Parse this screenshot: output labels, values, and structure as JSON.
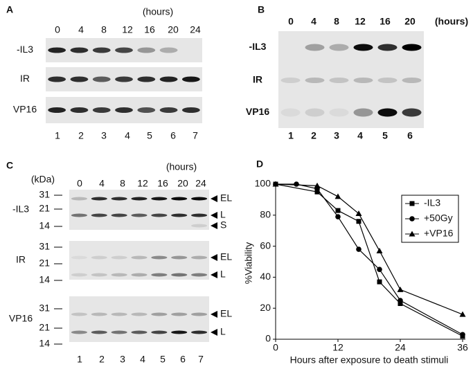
{
  "panels": {
    "a": {
      "label": "A",
      "unit": "(hours)",
      "times": [
        "0",
        "4",
        "8",
        "12",
        "16",
        "20",
        "24"
      ],
      "rows": [
        "-IL3",
        "IR",
        "VP16"
      ],
      "lanes": [
        "1",
        "2",
        "3",
        "4",
        "5",
        "6",
        "7"
      ]
    },
    "b": {
      "label": "B",
      "unit": "(hours)",
      "times": [
        "0",
        "4",
        "8",
        "12",
        "16",
        "20"
      ],
      "rows": [
        "-IL3",
        "IR",
        "VP16"
      ],
      "lanes": [
        "1",
        "2",
        "3",
        "4",
        "5",
        "6"
      ]
    },
    "c": {
      "label": "C",
      "kda": "(kDa)",
      "unit": "(hours)",
      "times": [
        "0",
        "4",
        "8",
        "12",
        "16",
        "20",
        "24"
      ],
      "lanes": [
        "1",
        "2",
        "3",
        "4",
        "5",
        "6",
        "7"
      ],
      "rows": [
        {
          "name": "-IL3",
          "markers": [
            "31",
            "21",
            "14"
          ],
          "bands": [
            "EL",
            "L",
            "S"
          ]
        },
        {
          "name": "IR",
          "markers": [
            "31",
            "21",
            "14"
          ],
          "bands": [
            "EL",
            "L"
          ]
        },
        {
          "name": "VP16",
          "markers": [
            "31",
            "21",
            "14"
          ],
          "bands": [
            "EL",
            "L"
          ]
        }
      ]
    }
  },
  "chart_data": {
    "type": "line",
    "label": "D",
    "x_label": "Hours after exposure to death stimuli",
    "y_label": "%Viability",
    "xlim": [
      0,
      36
    ],
    "xticks": [
      0,
      12,
      24,
      36
    ],
    "ylim": [
      0,
      100
    ],
    "yticks": [
      0,
      20,
      40,
      60,
      80,
      100
    ],
    "legend": "upper right",
    "series": [
      {
        "name": "-IL3",
        "marker": "square",
        "color": "#000000",
        "x": [
          0,
          8,
          12,
          16,
          20,
          24,
          36
        ],
        "values": [
          100,
          95,
          83,
          76,
          37,
          23,
          2
        ]
      },
      {
        "name": "+50Gy",
        "marker": "circle",
        "color": "#000000",
        "x": [
          0,
          4,
          8,
          12,
          16,
          20,
          24,
          36
        ],
        "values": [
          100,
          100,
          97,
          79,
          58,
          45,
          25,
          3
        ]
      },
      {
        "name": "+VP16",
        "marker": "triangle",
        "color": "#000000",
        "x": [
          0,
          8,
          12,
          16,
          20,
          24,
          36
        ],
        "values": [
          100,
          99,
          92,
          81,
          57,
          32,
          16
        ]
      }
    ]
  }
}
